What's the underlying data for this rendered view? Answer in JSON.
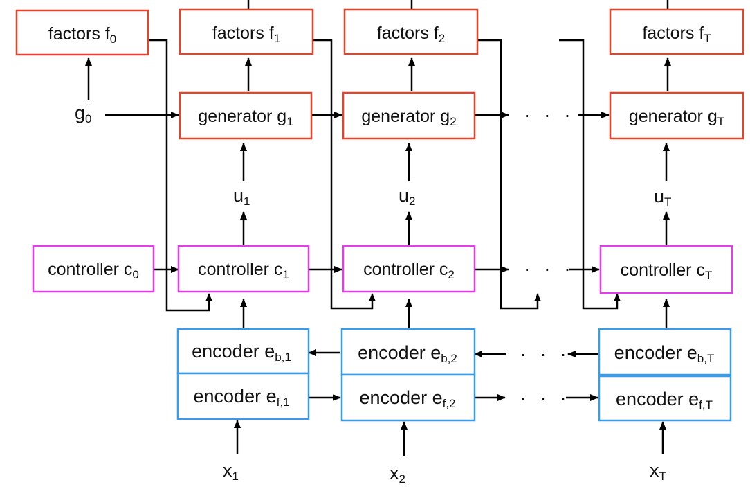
{
  "colors": {
    "factors": "#e8432a",
    "generator": "#e8432a",
    "controller": "#e040e8",
    "encoder": "#3a9be6",
    "line": "#000000"
  },
  "diagram": {
    "factors": [
      {
        "base": "factors f",
        "sub": "0"
      },
      {
        "base": "factors f",
        "sub": "1"
      },
      {
        "base": "factors f",
        "sub": "2"
      },
      {
        "base": "factors f",
        "sub": "T"
      }
    ],
    "generators": [
      {
        "base": "generator g",
        "sub": "1"
      },
      {
        "base": "generator g",
        "sub": "2"
      },
      {
        "base": "generator g",
        "sub": "T"
      }
    ],
    "controllers": [
      {
        "base": "controller c",
        "sub": "0"
      },
      {
        "base": "controller c",
        "sub": "1"
      },
      {
        "base": "controller c",
        "sub": "2"
      },
      {
        "base": "controller c",
        "sub": "T"
      }
    ],
    "encoders_b": [
      {
        "base": "encoder e",
        "sub": "b,1"
      },
      {
        "base": "encoder e",
        "sub": "b,2"
      },
      {
        "base": "encoder e",
        "sub": "b,T"
      }
    ],
    "encoders_f": [
      {
        "base": "encoder e",
        "sub": "f,1"
      },
      {
        "base": "encoder e",
        "sub": "f,2"
      },
      {
        "base": "encoder e",
        "sub": "f,T"
      }
    ],
    "g0": {
      "base": "g",
      "sub": "0"
    },
    "inputs_u": [
      {
        "base": "u",
        "sub": "1"
      },
      {
        "base": "u",
        "sub": "2"
      },
      {
        "base": "u",
        "sub": "T"
      }
    ],
    "inputs_x": [
      {
        "base": "x",
        "sub": "1"
      },
      {
        "base": "x",
        "sub": "2"
      },
      {
        "base": "x",
        "sub": "T"
      }
    ],
    "ellipsis": "· · ·"
  }
}
